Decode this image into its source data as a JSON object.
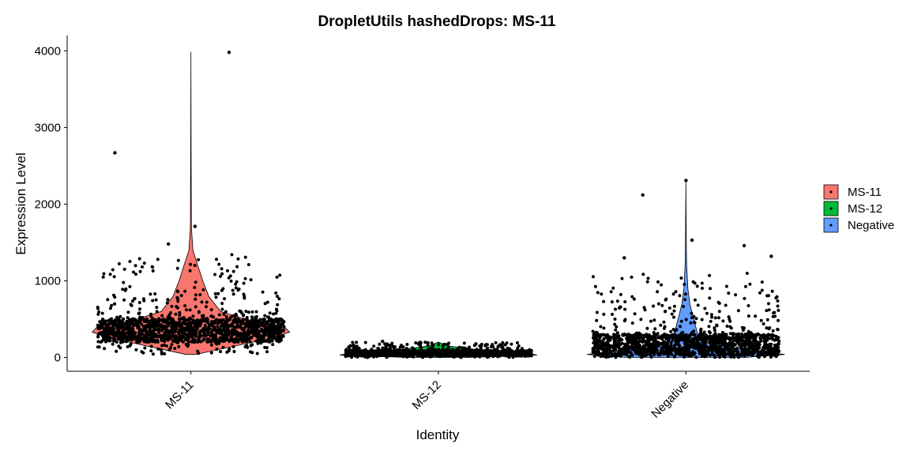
{
  "chart_data": {
    "type": "violin",
    "title": "DropletUtils hashedDrops: MS-11",
    "xlabel": "Identity",
    "ylabel": "Expression Level",
    "categories": [
      "MS-11",
      "MS-12",
      "Negative"
    ],
    "colors": {
      "MS-11": "#F8766D",
      "MS-12": "#00BA38",
      "Negative": "#619CFF"
    },
    "ylim": [
      -180,
      4200
    ],
    "yticks": [
      0,
      1000,
      2000,
      3000,
      4000
    ],
    "ytick_labels": [
      "0",
      "1000",
      "2000",
      "3000",
      "4000"
    ],
    "legend": {
      "placement": "right",
      "entries": [
        "MS-11",
        "MS-12",
        "Negative"
      ]
    },
    "series": [
      {
        "name": "MS-11",
        "min": 40,
        "max": 3980,
        "density_profile": [
          [
            40,
            0.05
          ],
          [
            150,
            0.45
          ],
          [
            250,
            0.8
          ],
          [
            330,
            1.0
          ],
          [
            400,
            0.95
          ],
          [
            480,
            0.6
          ],
          [
            600,
            0.3
          ],
          [
            800,
            0.18
          ],
          [
            1000,
            0.12
          ],
          [
            1200,
            0.07
          ],
          [
            1400,
            0.02
          ],
          [
            1700,
            0.005
          ],
          [
            2700,
            0.002
          ],
          [
            3980,
            0.0
          ]
        ],
        "bulk_range": [
          200,
          500
        ],
        "outliers": [
          3980,
          2670,
          1710,
          1480
        ]
      },
      {
        "name": "MS-12",
        "min": 0,
        "max": 200,
        "density_profile": [
          [
            0,
            0.3
          ],
          [
            30,
            1.0
          ],
          [
            60,
            0.9
          ],
          [
            100,
            0.4
          ],
          [
            150,
            0.1
          ],
          [
            200,
            0.0
          ]
        ],
        "bulk_range": [
          20,
          90
        ],
        "outliers": [
          210,
          190
        ]
      },
      {
        "name": "Negative",
        "min": 0,
        "max": 2300,
        "density_profile": [
          [
            0,
            0.6
          ],
          [
            40,
            1.0
          ],
          [
            100,
            0.6
          ],
          [
            200,
            0.2
          ],
          [
            300,
            0.12
          ],
          [
            500,
            0.08
          ],
          [
            700,
            0.04
          ],
          [
            900,
            0.02
          ],
          [
            1200,
            0.008
          ],
          [
            1500,
            0.004
          ],
          [
            2300,
            0.0
          ]
        ],
        "bulk_range": [
          30,
          300
        ],
        "outliers": [
          2310,
          2120,
          1530,
          1460,
          1300,
          1320
        ]
      }
    ]
  }
}
